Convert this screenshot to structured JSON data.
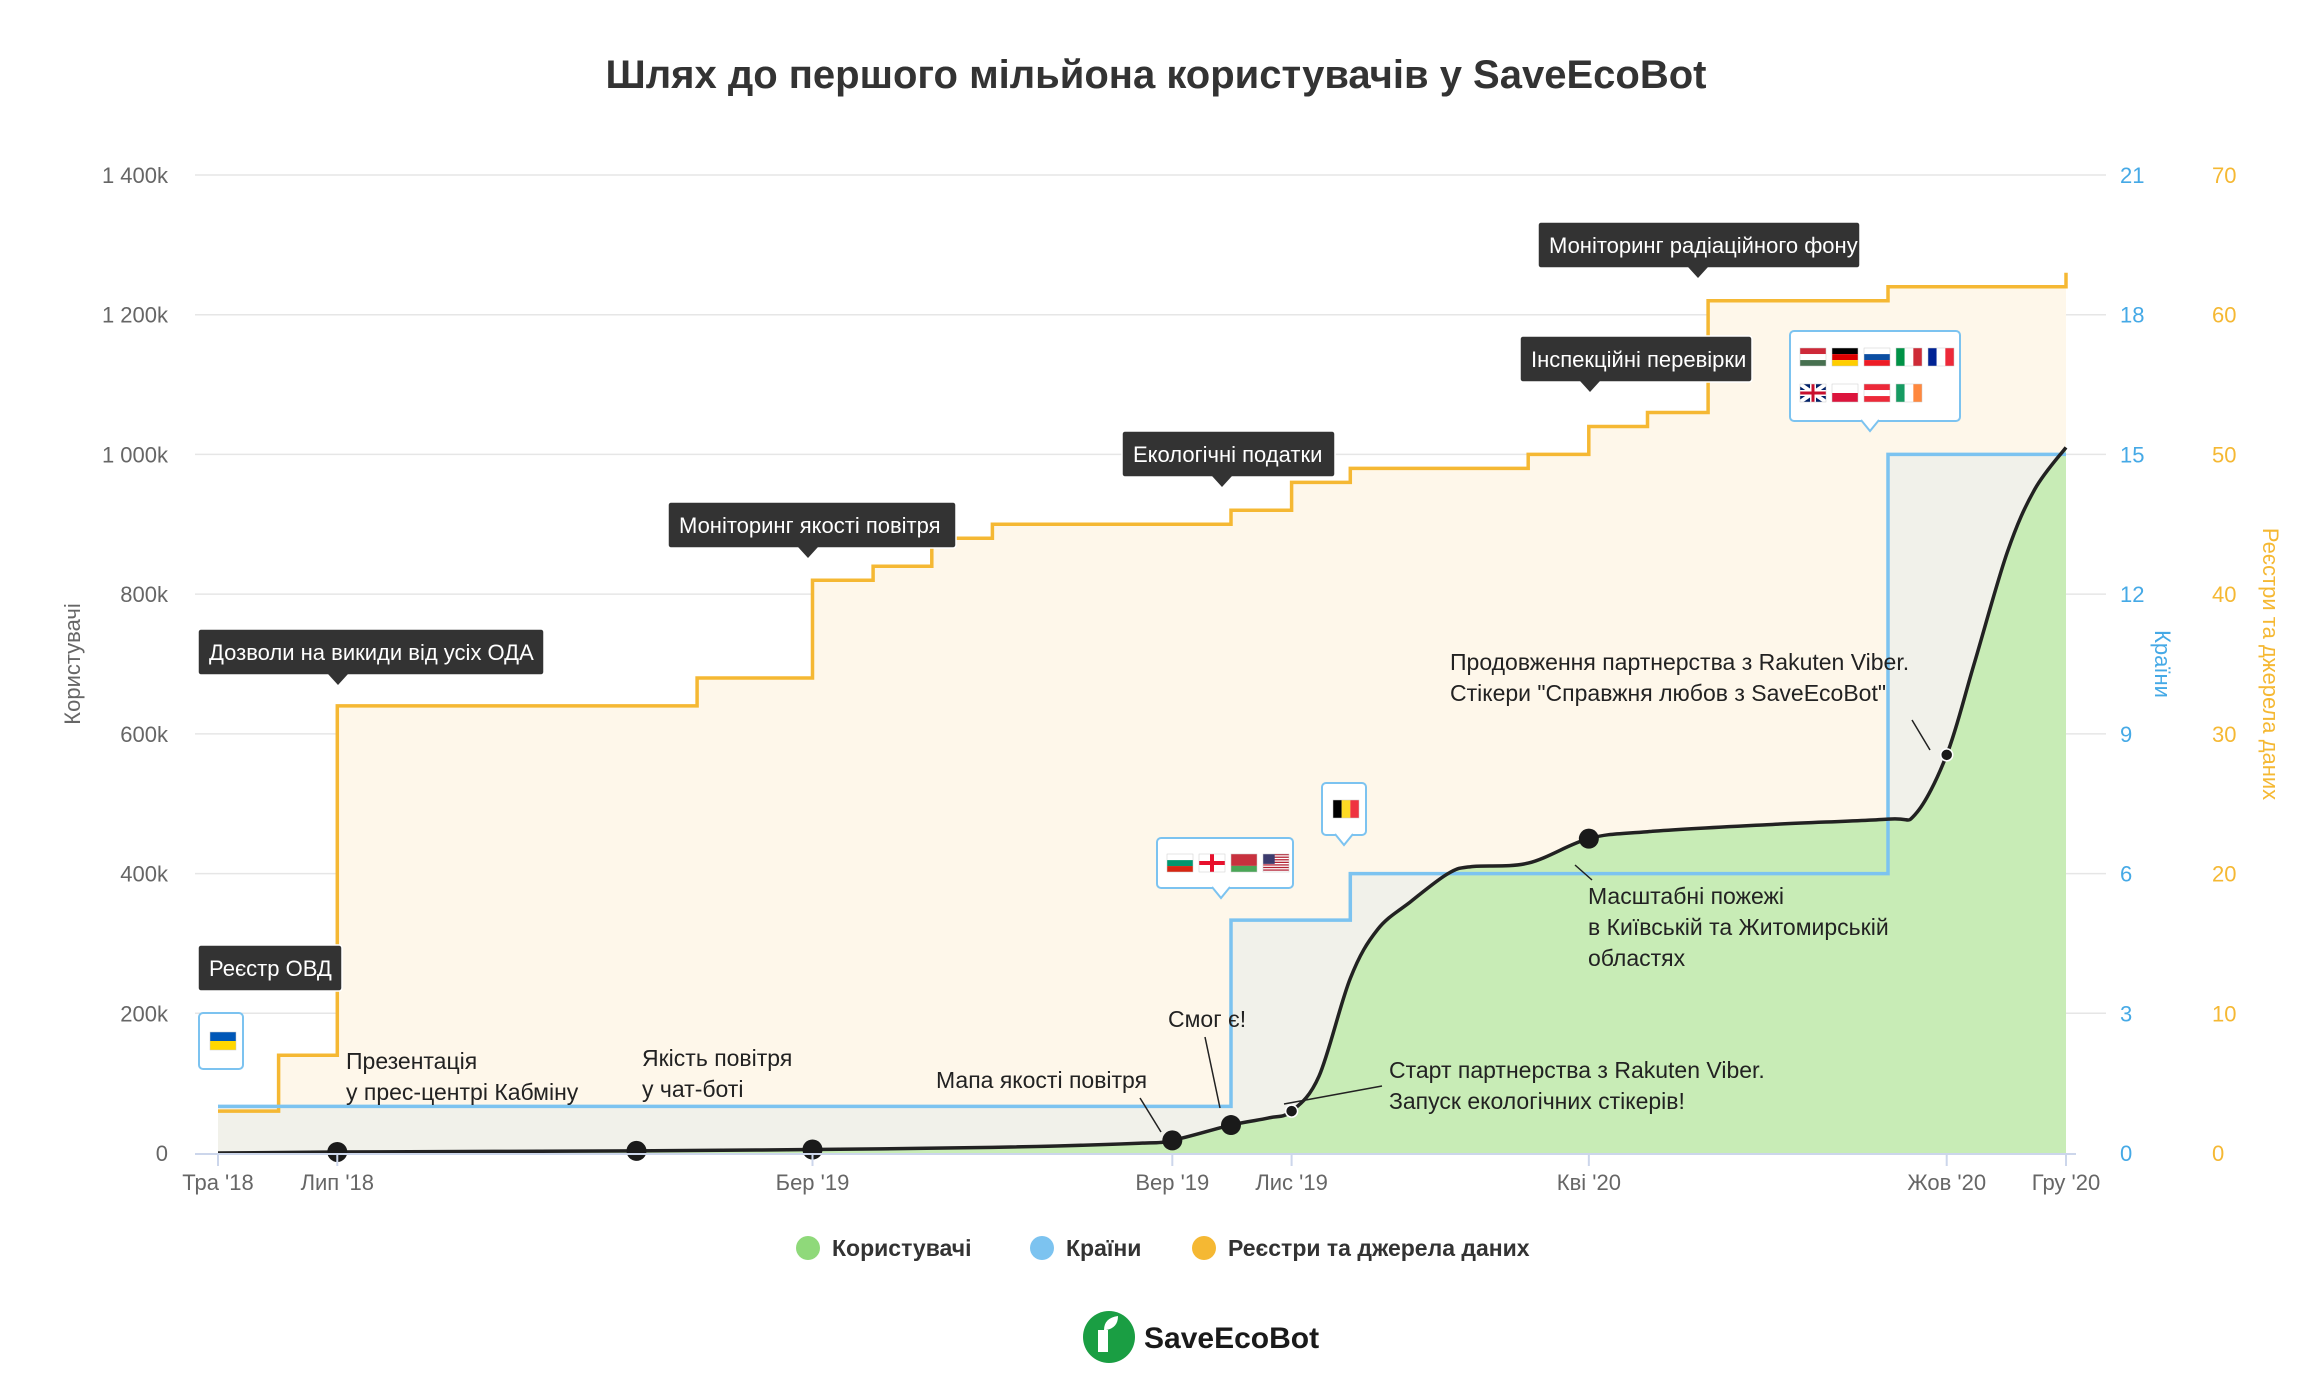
{
  "chart_data": {
    "type": "line",
    "title": "Шлях до першого мільйона користувачів у SaveEcoBot",
    "x": {
      "type": "datetime",
      "tick_labels": [
        "Тра '18",
        "Лип '18",
        "Бер '19",
        "Вер '19",
        "Лис '19",
        "Кві '20",
        "Жов '20",
        "Гру '20"
      ],
      "tick_dates": [
        "2018-05-01",
        "2018-07-01",
        "2019-03-01",
        "2019-09-01",
        "2019-11-01",
        "2020-04-01",
        "2020-10-01",
        "2020-12-01"
      ],
      "range": [
        "2018-05-01",
        "2020-12-01"
      ]
    },
    "y_axes": [
      {
        "name": "users",
        "title": "Користувачі",
        "position": "left",
        "range": [
          0,
          1400000
        ],
        "tick_labels": [
          "0",
          "200k",
          "400k",
          "600k",
          "800k",
          "1 000k",
          "1 200k",
          "1 400k"
        ],
        "color": "#666666"
      },
      {
        "name": "countries",
        "title": "Країни",
        "position": "right",
        "range": [
          0,
          21
        ],
        "tick_labels": [
          "0",
          "3",
          "6",
          "9",
          "12",
          "15",
          "18",
          "21"
        ],
        "color": "#45a9e6"
      },
      {
        "name": "registries",
        "title": "Реєстри та джерела даних",
        "position": "right",
        "range": [
          0,
          70
        ],
        "tick_labels": [
          "0",
          "10",
          "20",
          "30",
          "40",
          "50",
          "60",
          "70"
        ],
        "color": "#f5b833"
      }
    ],
    "grid": true,
    "legend_position": "bottom",
    "series": [
      {
        "name": "Користувачі",
        "axis": "users",
        "type": "area-line",
        "color": "#8fd97a",
        "fill": "#c8ecb6",
        "points": [
          [
            "2018-05-01",
            0
          ],
          [
            "2018-07-01",
            1500
          ],
          [
            "2018-12-01",
            3000
          ],
          [
            "2019-03-01",
            5000
          ],
          [
            "2019-06-01",
            8000
          ],
          [
            "2019-08-15",
            14000
          ],
          [
            "2019-09-01",
            18000
          ],
          [
            "2019-10-01",
            40000
          ],
          [
            "2019-10-20",
            50000
          ],
          [
            "2019-11-01",
            60000
          ],
          [
            "2019-11-15",
            110000
          ],
          [
            "2019-12-01",
            250000
          ],
          [
            "2019-12-15",
            320000
          ],
          [
            "2020-01-01",
            360000
          ],
          [
            "2020-01-20",
            400000
          ],
          [
            "2020-02-01",
            410000
          ],
          [
            "2020-03-01",
            415000
          ],
          [
            "2020-04-01",
            450000
          ],
          [
            "2020-05-01",
            460000
          ],
          [
            "2020-07-01",
            470000
          ],
          [
            "2020-09-01",
            478000
          ],
          [
            "2020-09-15",
            485000
          ],
          [
            "2020-10-01",
            570000
          ],
          [
            "2020-10-15",
            700000
          ],
          [
            "2020-11-01",
            860000
          ],
          [
            "2020-11-15",
            950000
          ],
          [
            "2020-12-01",
            1010000
          ]
        ]
      },
      {
        "name": "Країни",
        "axis": "countries",
        "type": "step",
        "color": "#7cc3f0",
        "points": [
          [
            "2018-05-01",
            1
          ],
          [
            "2019-10-01",
            1
          ],
          [
            "2019-10-01",
            5
          ],
          [
            "2019-12-01",
            5
          ],
          [
            "2019-12-01",
            6
          ],
          [
            "2020-09-01",
            6
          ],
          [
            "2020-09-01",
            15
          ],
          [
            "2020-12-01",
            15
          ]
        ]
      },
      {
        "name": "Реєстри та джерела даних",
        "axis": "registries",
        "type": "step-area",
        "color": "#f5b833",
        "fill": "#fef7ea",
        "points": [
          [
            "2018-05-01",
            3
          ],
          [
            "2018-06-01",
            7
          ],
          [
            "2018-07-01",
            32
          ],
          [
            "2019-01-01",
            34
          ],
          [
            "2019-03-01",
            41
          ],
          [
            "2019-04-01",
            42
          ],
          [
            "2019-05-01",
            44
          ],
          [
            "2019-06-01",
            45
          ],
          [
            "2019-10-01",
            46
          ],
          [
            "2019-11-01",
            48
          ],
          [
            "2019-12-01",
            49
          ],
          [
            "2020-03-01",
            50
          ],
          [
            "2020-04-01",
            52
          ],
          [
            "2020-05-01",
            53
          ],
          [
            "2020-06-01",
            61
          ],
          [
            "2020-09-01",
            62
          ],
          [
            "2020-12-01",
            63
          ]
        ]
      }
    ],
    "markers": [
      {
        "date": "2018-07-01",
        "value": 1500,
        "size": "large"
      },
      {
        "date": "2018-12-01",
        "value": 3000,
        "size": "large"
      },
      {
        "date": "2019-03-01",
        "value": 5000,
        "size": "large"
      },
      {
        "date": "2019-09-01",
        "value": 18000,
        "size": "large"
      },
      {
        "date": "2019-10-01",
        "value": 40000,
        "size": "large"
      },
      {
        "date": "2019-11-01",
        "value": 60000,
        "size": "small"
      },
      {
        "date": "2020-04-01",
        "value": 450000,
        "size": "large"
      },
      {
        "date": "2020-10-01",
        "value": 570000,
        "size": "small"
      }
    ],
    "annotations_dark": [
      "Реєстр ОВД",
      "Дозволи на викиди від усіх ОДА",
      "Моніторинг якості повітря",
      "Екологічні податки",
      "Інспекційні перевірки",
      "Моніторинг радіаційного фону"
    ],
    "annotations_plain": [
      {
        "lines": [
          "Презентація",
          "у прес-центрі Кабміну"
        ]
      },
      {
        "lines": [
          "Якість повітря",
          "у чат-боті"
        ]
      },
      {
        "lines": [
          "Мапа якості повітря"
        ]
      },
      {
        "lines": [
          "Смог є!"
        ]
      },
      {
        "lines": [
          "Старт партнерства з Rakuten Viber.",
          "Запуск екологічних стікерів!"
        ]
      },
      {
        "lines": [
          "Масштабні пожежі",
          "в Київській та Житомирській",
          "областях"
        ]
      },
      {
        "lines": [
          "Продовження партнерства з Rakuten Viber.",
          "Стікери \"Справжня любов з SaveEcoBot\""
        ]
      }
    ],
    "flag_callouts": [
      {
        "flags": [
          "ua"
        ]
      },
      {
        "flags": [
          "bg",
          "ge",
          "by",
          "us"
        ]
      },
      {
        "flags": [
          "be"
        ]
      },
      {
        "flags": [
          "hu",
          "de",
          "sk",
          "it",
          "fr",
          "gb",
          "pl",
          "at",
          "ie"
        ]
      }
    ]
  },
  "logo": {
    "text_part1": "Save",
    "text_part2": "EcoBot",
    "color": "#1a9e43"
  }
}
